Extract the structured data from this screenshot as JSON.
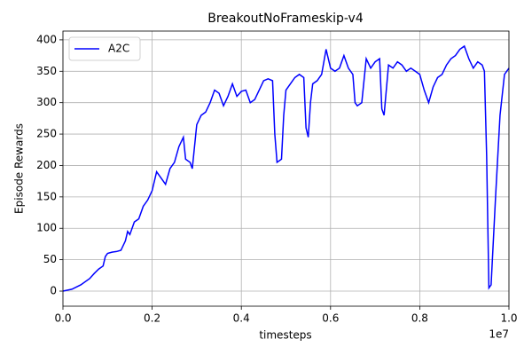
{
  "chart_data": {
    "type": "line",
    "title": "BreakoutNoFrameskip-v4",
    "x_label": "timesteps",
    "y_label": "Episode Rewards",
    "x_offset_label": "1e7",
    "x": [
      0,
      200000,
      400000,
      600000,
      700000,
      800000,
      900000,
      950000,
      1000000,
      1100000,
      1200000,
      1300000,
      1400000,
      1450000,
      1500000,
      1600000,
      1700000,
      1800000,
      1900000,
      2000000,
      2100000,
      2200000,
      2300000,
      2400000,
      2500000,
      2600000,
      2700000,
      2750000,
      2850000,
      2900000,
      3000000,
      3100000,
      3200000,
      3300000,
      3400000,
      3500000,
      3600000,
      3700000,
      3800000,
      3900000,
      4000000,
      4100000,
      4200000,
      4300000,
      4400000,
      4500000,
      4600000,
      4700000,
      4750000,
      4800000,
      4900000,
      4950000,
      5000000,
      5100000,
      5200000,
      5300000,
      5400000,
      5450000,
      5500000,
      5550000,
      5600000,
      5700000,
      5800000,
      5900000,
      6000000,
      6100000,
      6200000,
      6300000,
      6400000,
      6500000,
      6550000,
      6600000,
      6700000,
      6800000,
      6900000,
      7000000,
      7100000,
      7150000,
      7200000,
      7300000,
      7400000,
      7500000,
      7600000,
      7700000,
      7800000,
      7900000,
      8000000,
      8100000,
      8200000,
      8300000,
      8400000,
      8500000,
      8600000,
      8700000,
      8800000,
      8900000,
      9000000,
      9100000,
      9200000,
      9300000,
      9400000,
      9450000,
      9500000,
      9550000,
      9600000,
      9700000,
      9800000,
      9900000,
      10000000
    ],
    "series": [
      {
        "name": "A2C",
        "color": "#0000ff",
        "values": [
          0,
          3,
          10,
          20,
          28,
          35,
          40,
          55,
          60,
          62,
          63,
          65,
          80,
          95,
          90,
          110,
          115,
          135,
          145,
          160,
          190,
          180,
          170,
          195,
          205,
          230,
          245,
          210,
          205,
          195,
          265,
          280,
          285,
          300,
          320,
          315,
          295,
          310,
          330,
          310,
          318,
          320,
          300,
          305,
          320,
          335,
          338,
          335,
          250,
          205,
          210,
          280,
          320,
          330,
          340,
          345,
          340,
          260,
          245,
          300,
          330,
          335,
          345,
          385,
          355,
          350,
          355,
          375,
          355,
          345,
          300,
          295,
          300,
          370,
          355,
          365,
          370,
          290,
          280,
          360,
          355,
          365,
          360,
          350,
          355,
          350,
          345,
          320,
          300,
          325,
          340,
          345,
          360,
          370,
          375,
          385,
          390,
          370,
          355,
          365,
          360,
          350,
          215,
          5,
          10,
          150,
          280,
          345,
          355
        ]
      }
    ],
    "xlim": [
      0,
      10000000
    ],
    "xticks": [
      {
        "value": 0,
        "label": "0.0"
      },
      {
        "value": 2000000,
        "label": "0.2"
      },
      {
        "value": 4000000,
        "label": "0.4"
      },
      {
        "value": 6000000,
        "label": "0.6"
      },
      {
        "value": 8000000,
        "label": "0.8"
      },
      {
        "value": 10000000,
        "label": "1.0"
      }
    ],
    "ylim": [
      -24,
      414
    ],
    "yticks": [
      0,
      50,
      100,
      150,
      200,
      250,
      300,
      350,
      400
    ],
    "grid": true,
    "legend": "upper left"
  }
}
